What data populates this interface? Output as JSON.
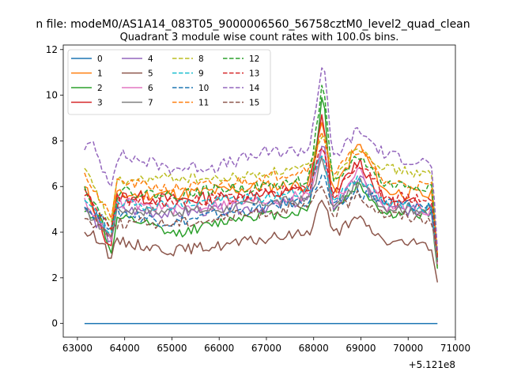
{
  "suptitle": "n file: modeM0/AS1A14_083T05_9000006560_56758cztM0_level2_quad_clean",
  "chart_data": {
    "type": "line",
    "title": "Quadrant 3 module wise count rates with 100.0s bins.",
    "xlabel": "",
    "ylabel": "",
    "x_offset_label": "+5.121e8",
    "xlim": [
      62700,
      71000
    ],
    "ylim": [
      -0.6,
      12.2
    ],
    "xticks": [
      63000,
      64000,
      65000,
      66000,
      67000,
      68000,
      69000,
      70000,
      71000
    ],
    "yticks": [
      0,
      2,
      4,
      6,
      8,
      10,
      12
    ],
    "x_start": 63150,
    "x_end": 70620,
    "n_points": 120,
    "legend_location": "upper-left",
    "legend_columns": 4,
    "series": [
      {
        "name": "0",
        "color": "#1f77b4",
        "style": "solid",
        "knots": [
          [
            63150,
            0
          ],
          [
            70620,
            0
          ]
        ],
        "noise": 0,
        "seed": 1
      },
      {
        "name": "1",
        "color": "#ff7f0e",
        "style": "solid",
        "knots": [
          [
            63150,
            6.0
          ],
          [
            63700,
            3.5
          ],
          [
            63800,
            5.6
          ],
          [
            65000,
            5.7
          ],
          [
            66000,
            5.8
          ],
          [
            67000,
            6.0
          ],
          [
            67900,
            6.1
          ],
          [
            68200,
            9.1
          ],
          [
            68400,
            5.6
          ],
          [
            68950,
            7.9
          ],
          [
            69500,
            5.8
          ],
          [
            70500,
            5.6
          ],
          [
            70620,
            2.5
          ]
        ],
        "noise": 0.28,
        "seed": 11
      },
      {
        "name": "2",
        "color": "#2ca02c",
        "style": "solid",
        "knots": [
          [
            63150,
            4.9
          ],
          [
            63500,
            4.6
          ],
          [
            63700,
            3.0
          ],
          [
            63850,
            4.6
          ],
          [
            64400,
            4.4
          ],
          [
            65000,
            3.9
          ],
          [
            65800,
            4.3
          ],
          [
            66500,
            4.7
          ],
          [
            67500,
            4.8
          ],
          [
            67900,
            5.0
          ],
          [
            68200,
            10.3
          ],
          [
            68400,
            4.9
          ],
          [
            68950,
            6.1
          ],
          [
            69500,
            4.8
          ],
          [
            70500,
            4.8
          ],
          [
            70620,
            2.4
          ]
        ],
        "noise": 0.22,
        "seed": 12
      },
      {
        "name": "3",
        "color": "#d62728",
        "style": "solid",
        "knots": [
          [
            63150,
            5.9
          ],
          [
            63700,
            3.3
          ],
          [
            63850,
            5.6
          ],
          [
            65000,
            5.4
          ],
          [
            66000,
            5.5
          ],
          [
            67000,
            5.6
          ],
          [
            67900,
            5.9
          ],
          [
            68200,
            9.2
          ],
          [
            68400,
            5.4
          ],
          [
            68950,
            7.2
          ],
          [
            69500,
            5.3
          ],
          [
            70500,
            5.2
          ],
          [
            70620,
            2.7
          ]
        ],
        "noise": 0.3,
        "seed": 13
      },
      {
        "name": "4",
        "color": "#9467bd",
        "style": "solid",
        "knots": [
          [
            63150,
            5.1
          ],
          [
            63700,
            3.6
          ],
          [
            63850,
            5.0
          ],
          [
            65000,
            4.8
          ],
          [
            66000,
            5.0
          ],
          [
            67000,
            5.1
          ],
          [
            67900,
            5.4
          ],
          [
            68200,
            8.2
          ],
          [
            68400,
            5.0
          ],
          [
            68950,
            6.4
          ],
          [
            69500,
            5.0
          ],
          [
            70500,
            4.9
          ],
          [
            70620,
            2.6
          ]
        ],
        "noise": 0.26,
        "seed": 14
      },
      {
        "name": "5",
        "color": "#8c564b",
        "style": "solid",
        "knots": [
          [
            63150,
            4.0
          ],
          [
            63500,
            3.7
          ],
          [
            63700,
            2.9
          ],
          [
            63850,
            3.6
          ],
          [
            65000,
            3.2
          ],
          [
            66000,
            3.4
          ],
          [
            67000,
            3.7
          ],
          [
            67900,
            4.0
          ],
          [
            68200,
            5.6
          ],
          [
            68400,
            3.9
          ],
          [
            68950,
            4.6
          ],
          [
            69500,
            3.6
          ],
          [
            70500,
            3.4
          ],
          [
            70620,
            1.8
          ]
        ],
        "noise": 0.24,
        "seed": 15
      },
      {
        "name": "6",
        "color": "#e377c2",
        "style": "solid",
        "knots": [
          [
            63150,
            5.5
          ],
          [
            63700,
            3.6
          ],
          [
            63850,
            5.3
          ],
          [
            65000,
            5.0
          ],
          [
            66000,
            5.2
          ],
          [
            67000,
            5.4
          ],
          [
            67900,
            5.6
          ],
          [
            68200,
            7.8
          ],
          [
            68400,
            5.2
          ],
          [
            68950,
            6.7
          ],
          [
            69500,
            5.1
          ],
          [
            70500,
            5.0
          ],
          [
            70620,
            2.6
          ]
        ],
        "noise": 0.26,
        "seed": 16
      },
      {
        "name": "7",
        "color": "#7f7f7f",
        "style": "solid",
        "knots": [
          [
            63150,
            5.0
          ],
          [
            63700,
            3.8
          ],
          [
            63850,
            5.0
          ],
          [
            65000,
            4.9
          ],
          [
            66000,
            5.0
          ],
          [
            67000,
            5.3
          ],
          [
            67900,
            5.4
          ],
          [
            68200,
            7.3
          ],
          [
            68400,
            5.0
          ],
          [
            68950,
            6.2
          ],
          [
            69500,
            5.1
          ],
          [
            70500,
            5.0
          ],
          [
            70620,
            2.7
          ]
        ],
        "noise": 0.24,
        "seed": 17
      },
      {
        "name": "8",
        "color": "#bcbd22",
        "style": "dashed",
        "knots": [
          [
            63150,
            6.8
          ],
          [
            63700,
            4.4
          ],
          [
            63850,
            6.2
          ],
          [
            65000,
            6.4
          ],
          [
            66000,
            6.3
          ],
          [
            67000,
            6.6
          ],
          [
            67900,
            6.8
          ],
          [
            68200,
            8.5
          ],
          [
            68400,
            6.4
          ],
          [
            68950,
            7.8
          ],
          [
            69500,
            6.8
          ],
          [
            70500,
            6.5
          ],
          [
            70620,
            3.0
          ]
        ],
        "noise": 0.22,
        "seed": 18
      },
      {
        "name": "9",
        "color": "#17becf",
        "style": "dashed",
        "knots": [
          [
            63150,
            5.4
          ],
          [
            63700,
            4.0
          ],
          [
            63850,
            5.2
          ],
          [
            65000,
            5.2
          ],
          [
            66000,
            5.4
          ],
          [
            67000,
            5.5
          ],
          [
            67900,
            5.8
          ],
          [
            68200,
            7.6
          ],
          [
            68400,
            5.3
          ],
          [
            68950,
            6.5
          ],
          [
            69500,
            5.2
          ],
          [
            70500,
            5.1
          ],
          [
            70620,
            2.8
          ]
        ],
        "noise": 0.24,
        "seed": 19
      },
      {
        "name": "10",
        "color": "#1f77b4",
        "style": "dashed",
        "knots": [
          [
            63150,
            5.1
          ],
          [
            63700,
            4.3
          ],
          [
            63850,
            4.9
          ],
          [
            65000,
            4.4
          ],
          [
            66000,
            4.8
          ],
          [
            67000,
            5.1
          ],
          [
            67900,
            5.4
          ],
          [
            68200,
            6.6
          ],
          [
            68400,
            5.0
          ],
          [
            68950,
            5.8
          ],
          [
            69500,
            5.3
          ],
          [
            70500,
            5.1
          ],
          [
            70620,
            2.9
          ]
        ],
        "noise": 0.26,
        "seed": 20
      },
      {
        "name": "11",
        "color": "#ff7f0e",
        "style": "dashed",
        "knots": [
          [
            63150,
            6.6
          ],
          [
            63700,
            4.6
          ],
          [
            63850,
            6.2
          ],
          [
            65000,
            5.9
          ],
          [
            66000,
            6.1
          ],
          [
            67000,
            6.4
          ],
          [
            67900,
            6.8
          ],
          [
            68200,
            8.4
          ],
          [
            68400,
            6.5
          ],
          [
            68950,
            7.7
          ],
          [
            69500,
            6.2
          ],
          [
            70500,
            6.0
          ],
          [
            70620,
            3.0
          ]
        ],
        "noise": 0.24,
        "seed": 21
      },
      {
        "name": "12",
        "color": "#2ca02c",
        "style": "dashed",
        "knots": [
          [
            63150,
            6.0
          ],
          [
            63700,
            4.1
          ],
          [
            63850,
            5.8
          ],
          [
            65000,
            5.6
          ],
          [
            66000,
            5.9
          ],
          [
            67000,
            6.0
          ],
          [
            67900,
            6.3
          ],
          [
            68200,
            10.6
          ],
          [
            68400,
            6.0
          ],
          [
            68950,
            7.4
          ],
          [
            69500,
            6.1
          ],
          [
            70500,
            6.0
          ],
          [
            70620,
            2.8
          ]
        ],
        "noise": 0.24,
        "seed": 22
      },
      {
        "name": "13",
        "color": "#d62728",
        "style": "dashed",
        "knots": [
          [
            63150,
            5.6
          ],
          [
            63700,
            4.2
          ],
          [
            63850,
            5.4
          ],
          [
            65000,
            5.3
          ],
          [
            66000,
            5.5
          ],
          [
            67000,
            5.7
          ],
          [
            67900,
            5.9
          ],
          [
            68200,
            8.0
          ],
          [
            68400,
            5.5
          ],
          [
            68950,
            7.0
          ],
          [
            69500,
            5.6
          ],
          [
            70500,
            5.4
          ],
          [
            70620,
            2.9
          ]
        ],
        "noise": 0.26,
        "seed": 23
      },
      {
        "name": "14",
        "color": "#9467bd",
        "style": "dashed",
        "knots": [
          [
            63150,
            7.6
          ],
          [
            63300,
            7.9
          ],
          [
            63700,
            6.1
          ],
          [
            63850,
            7.4
          ],
          [
            65000,
            6.8
          ],
          [
            66000,
            6.9
          ],
          [
            67000,
            7.5
          ],
          [
            67900,
            7.6
          ],
          [
            68200,
            11.6
          ],
          [
            68400,
            7.2
          ],
          [
            68950,
            8.5
          ],
          [
            69500,
            7.4
          ],
          [
            70500,
            7.0
          ],
          [
            70620,
            3.2
          ]
        ],
        "noise": 0.28,
        "seed": 24
      },
      {
        "name": "15",
        "color": "#8c564b",
        "style": "dashed",
        "knots": [
          [
            63150,
            4.6
          ],
          [
            63700,
            4.0
          ],
          [
            63850,
            4.4
          ],
          [
            65000,
            4.4
          ],
          [
            66000,
            4.6
          ],
          [
            67000,
            4.9
          ],
          [
            67900,
            5.1
          ],
          [
            68200,
            6.0
          ],
          [
            68400,
            4.8
          ],
          [
            68950,
            5.6
          ],
          [
            69500,
            4.8
          ],
          [
            70500,
            4.6
          ],
          [
            70620,
            2.7
          ]
        ],
        "noise": 0.26,
        "seed": 25
      }
    ]
  }
}
